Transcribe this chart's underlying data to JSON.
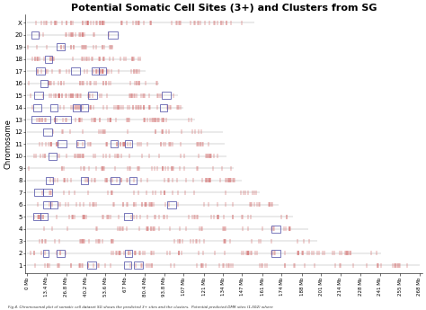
{
  "title": "Potential Somatic Cell Sites (3+) and Clusters from SG",
  "xlabel_ticks": [
    "0 Mb",
    "13.4 Mb",
    "26.8 Mb",
    "40.2 Mb",
    "53.6 Mb",
    "67 Mb",
    "80.4 Mb",
    "93.8 Mb",
    "107 Mb",
    "121 Mb",
    "134 Mb",
    "147 Mb",
    "161 Mb",
    "174 Mb",
    "188 Mb",
    "201 Mb",
    "214 Mb",
    "228 Mb",
    "241 Mb",
    "255 Mb",
    "268 Mb"
  ],
  "ylabel": "Chromosome",
  "chromosomes": [
    "1",
    "2",
    "3",
    "4",
    "5",
    "6",
    "7",
    "8",
    "9",
    "10",
    "11",
    "12",
    "13",
    "14",
    "15",
    "16",
    "17",
    "18",
    "19",
    "20",
    "X"
  ],
  "chr_lengths_mb": [
    268,
    242,
    198,
    192,
    182,
    172,
    159,
    147,
    141,
    136,
    135,
    134,
    115,
    107,
    103,
    90,
    81,
    78,
    59,
    63,
    155
  ],
  "tick_color": "#cc5555",
  "cluster_color": "#5555aa",
  "line_color": "#aaaaaa",
  "background_color": "#ffffff",
  "title_fontsize": 8,
  "axis_fontsize": 5,
  "caption": "Fig 4. Chromosomal plot of somatic cell dataset SG shows the predicted 3+ sites and the clusters.  Potential predicted DMR sites (1,502) where",
  "seed": 42,
  "xmax": 268
}
